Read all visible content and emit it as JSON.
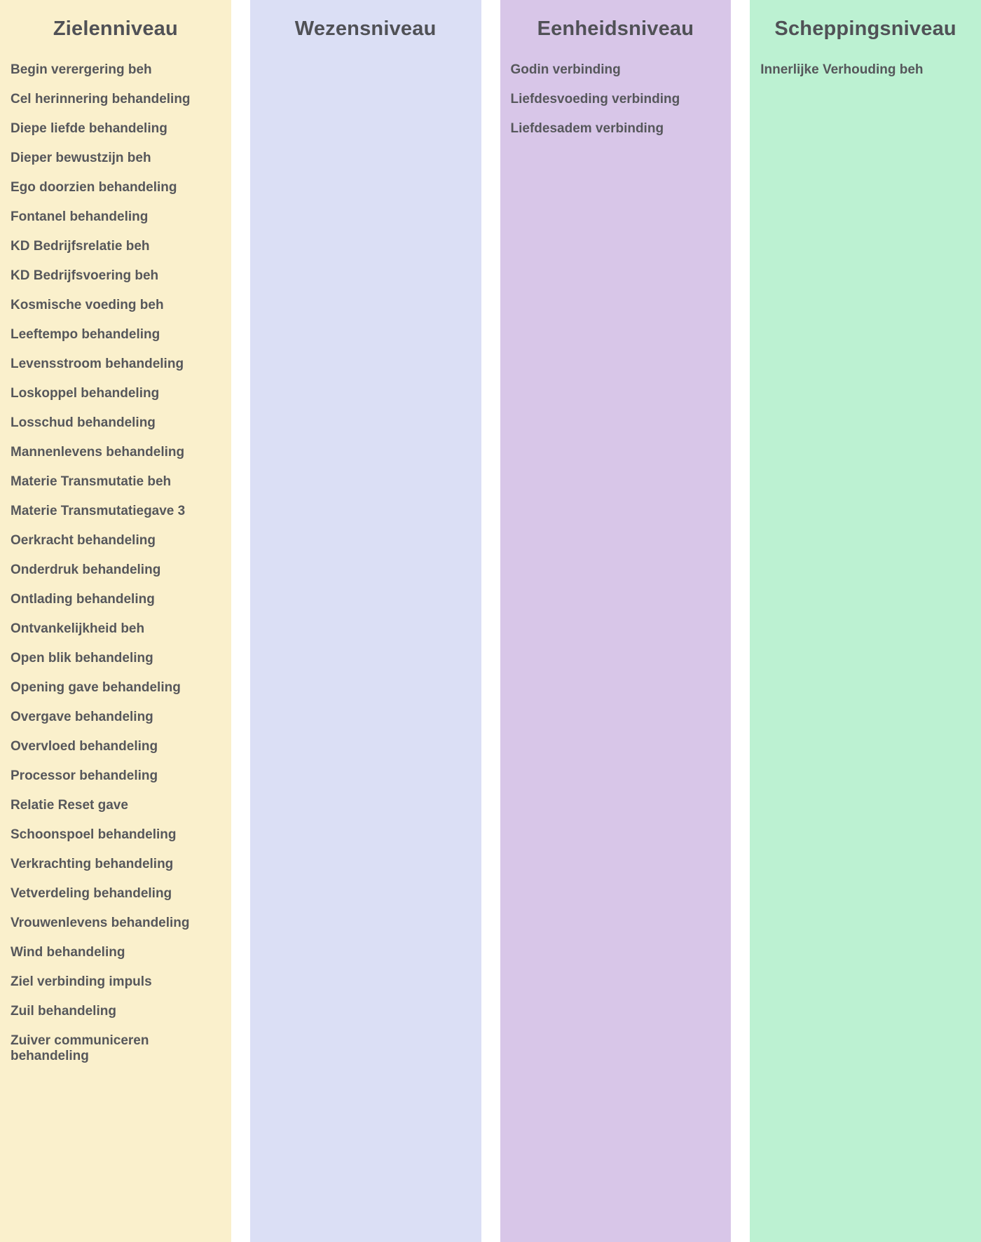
{
  "board": {
    "text_color": "#56575B",
    "columns": [
      {
        "id": "zielenniveau",
        "title": "Zielenniveau",
        "bg_color": "#FAF0CC",
        "items": [
          "Begin verergering beh",
          "Cel herinnering behandeling",
          "Diepe liefde behandeling",
          "Dieper bewustzijn beh",
          "Ego doorzien behandeling",
          "Fontanel behandeling",
          "KD Bedrijfsrelatie beh",
          "KD Bedrijfsvoering beh",
          "Kosmische voeding beh",
          "Leeftempo behandeling",
          "Levensstroom behandeling",
          "Loskoppel behandeling",
          "Losschud behandeling",
          "Mannenlevens behandeling",
          "Materie Transmutatie beh",
          "Materie Transmutatiegave 3",
          "Oerkracht behandeling",
          "Onderdruk behandeling",
          "Ontlading behandeling",
          "Ontvankelijkheid beh",
          "Open blik behandeling",
          "Opening gave behandeling",
          "Overgave behandeling",
          "Overvloed behandeling",
          "Processor behandeling",
          "Relatie Reset gave",
          "Schoonspoel behandeling",
          "Verkrachting behandeling",
          "Vetverdeling behandeling",
          "Vrouwenlevens behandeling",
          "Wind behandeling",
          "Ziel verbinding impuls",
          "Zuil behandeling",
          "Zuiver communiceren behandeling"
        ]
      },
      {
        "id": "wezensniveau",
        "title": "Wezensniveau",
        "bg_color": "#DBDFF5",
        "items": []
      },
      {
        "id": "eenheidsniveau",
        "title": "Eenheidsniveau",
        "bg_color": "#D8C6E8",
        "items": [
          "Godin verbinding",
          "Liefdesvoeding verbinding",
          "Liefdesadem verbinding"
        ]
      },
      {
        "id": "scheppingsniveau",
        "title": "Scheppingsniveau",
        "bg_color": "#BCF1D2",
        "items": [
          "Innerlijke Verhouding beh"
        ]
      }
    ]
  }
}
